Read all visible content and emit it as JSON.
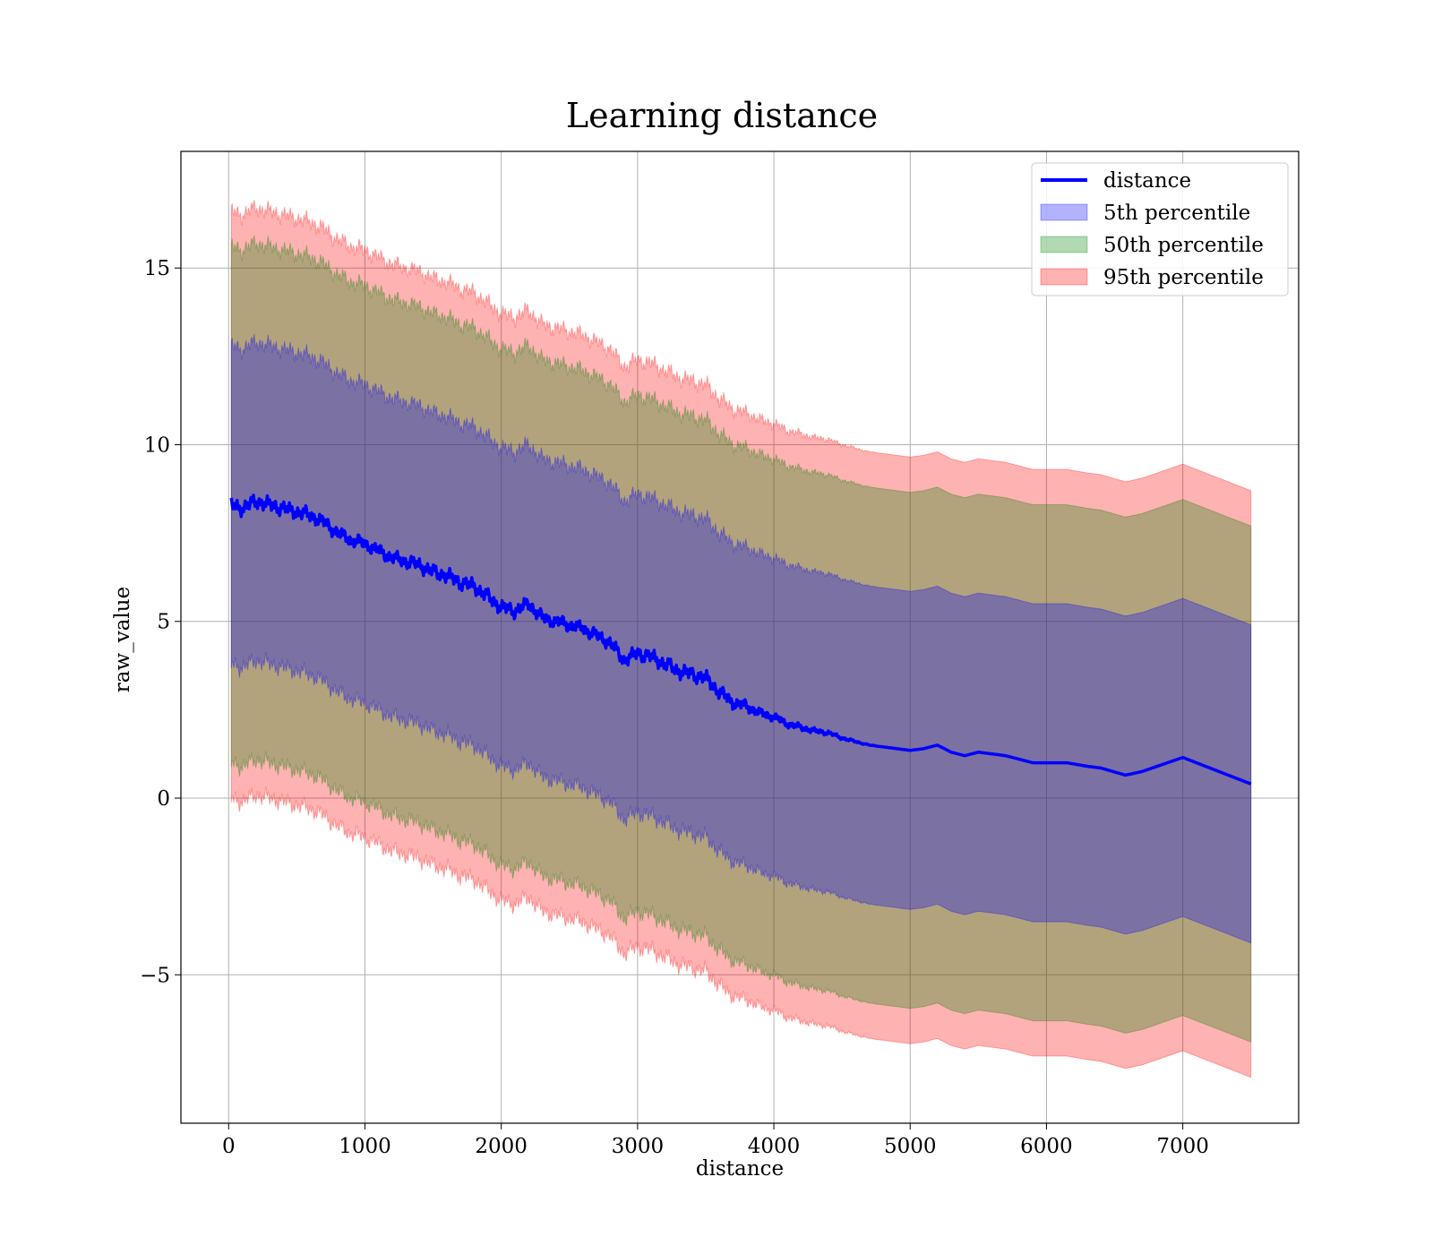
{
  "chart_data": {
    "type": "line",
    "title": "Learning distance",
    "xlabel": "distance",
    "ylabel": "raw_value",
    "xlim": [
      -350,
      7850
    ],
    "ylim": [
      -9.2,
      18.3
    ],
    "xticks": [
      0,
      1000,
      2000,
      3000,
      4000,
      5000,
      6000,
      7000
    ],
    "yticks": [
      -5,
      0,
      5,
      10,
      15
    ],
    "xtick_labels": [
      "0",
      "1000",
      "2000",
      "3000",
      "4000",
      "5000",
      "6000",
      "7000"
    ],
    "ytick_labels": [
      "−5",
      "0",
      "5",
      "10",
      "15"
    ],
    "grid": true,
    "legend_position": "top-right",
    "colors": {
      "line": "#0000ff",
      "band_5th": "#0000ff",
      "band_50th": "#008000",
      "band_95th": "#ff0000"
    },
    "line_series": {
      "name": "distance",
      "x": [
        20,
        100,
        200,
        300,
        400,
        500,
        600,
        700,
        800,
        900,
        1000,
        1100,
        1200,
        1300,
        1400,
        1500,
        1600,
        1700,
        1800,
        1900,
        2000,
        2100,
        2200,
        2300,
        2400,
        2500,
        2600,
        2700,
        2800,
        2900,
        3000,
        3100,
        3200,
        3300,
        3400,
        3500,
        3600,
        3700,
        3800,
        3900,
        4000,
        4100,
        4200,
        4300,
        4400,
        4500,
        4600,
        4700,
        4800,
        4900,
        5000,
        5100,
        5200,
        5300,
        5400,
        5500,
        5600,
        5700,
        5800,
        5900,
        6000,
        6150,
        6300,
        6400,
        6580,
        6700,
        7000,
        7500
      ],
      "values": [
        8.3,
        8.2,
        8.4,
        8.3,
        8.2,
        8.1,
        8.0,
        7.8,
        7.5,
        7.3,
        7.2,
        7.0,
        6.8,
        6.7,
        6.6,
        6.4,
        6.3,
        6.1,
        6.0,
        5.7,
        5.4,
        5.3,
        5.5,
        5.1,
        5.0,
        4.9,
        4.8,
        4.6,
        4.4,
        3.9,
        4.1,
        4.0,
        3.8,
        3.6,
        3.5,
        3.4,
        3.0,
        2.7,
        2.6,
        2.4,
        2.3,
        2.1,
        2.0,
        1.9,
        1.85,
        1.7,
        1.6,
        1.5,
        1.45,
        1.4,
        1.35,
        1.4,
        1.5,
        1.3,
        1.2,
        1.3,
        1.25,
        1.2,
        1.1,
        1.0,
        1.0,
        1.0,
        0.9,
        0.85,
        0.65,
        0.75,
        1.15,
        0.4
      ]
    },
    "bands": [
      {
        "name": "5th percentile",
        "offset": 4.5
      },
      {
        "name": "50th percentile",
        "offset": 7.3
      },
      {
        "name": "95th percentile",
        "offset": 8.3
      }
    ],
    "legend_entries": [
      "distance",
      "5th percentile",
      "50th percentile",
      "95th percentile"
    ]
  }
}
